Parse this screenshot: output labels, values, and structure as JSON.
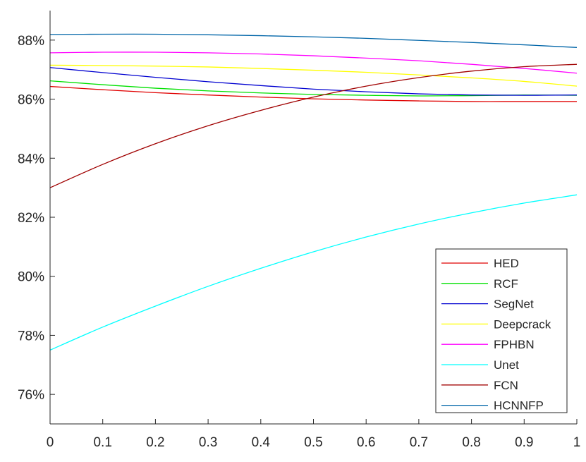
{
  "chart_data": {
    "type": "line",
    "title": "",
    "xlabel": "",
    "ylabel": "",
    "xlim": [
      0,
      1
    ],
    "ylim": [
      75,
      89
    ],
    "grid": false,
    "legend_position": "bottom-right",
    "x_ticks": [
      0,
      0.1,
      0.2,
      0.3,
      0.4,
      0.5,
      0.6,
      0.7,
      0.8,
      0.9,
      1
    ],
    "x_tick_labels": [
      "0",
      "0.1",
      "0.2",
      "0.3",
      "0.4",
      "0.5",
      "0.6",
      "0.7",
      "0.8",
      "0.9",
      "1"
    ],
    "y_ticks": [
      76,
      78,
      80,
      82,
      84,
      86,
      88
    ],
    "y_tick_labels": [
      "76%",
      "78%",
      "80%",
      "82%",
      "84%",
      "86%",
      "88%"
    ],
    "x": [
      0,
      0.1,
      0.2,
      0.3,
      0.4,
      0.5,
      0.6,
      0.7,
      0.8,
      0.9,
      1
    ],
    "series": [
      {
        "name": "HED",
        "color": "#e00000",
        "values": [
          86.43,
          86.32,
          86.22,
          86.14,
          86.07,
          86.01,
          85.97,
          85.94,
          85.92,
          85.92,
          85.92
        ]
      },
      {
        "name": "RCF",
        "color": "#00e000",
        "values": [
          86.62,
          86.49,
          86.37,
          86.28,
          86.21,
          86.16,
          86.13,
          86.11,
          86.12,
          86.14,
          86.13
        ]
      },
      {
        "name": "SegNet",
        "color": "#0000d0",
        "values": [
          87.07,
          86.9,
          86.74,
          86.59,
          86.46,
          86.34,
          86.25,
          86.18,
          86.14,
          86.13,
          86.14
        ]
      },
      {
        "name": "Deepcrack",
        "color": "#ffff00",
        "values": [
          87.15,
          87.14,
          87.12,
          87.09,
          87.04,
          86.98,
          86.91,
          86.82,
          86.72,
          86.6,
          86.44
        ]
      },
      {
        "name": "FPHBN",
        "color": "#ff00ff",
        "values": [
          87.57,
          87.59,
          87.59,
          87.57,
          87.53,
          87.47,
          87.39,
          87.3,
          87.18,
          87.04,
          86.88
        ]
      },
      {
        "name": "Unet",
        "color": "#00ffff",
        "values": [
          77.5,
          78.28,
          78.99,
          79.66,
          80.27,
          80.83,
          81.33,
          81.77,
          82.15,
          82.48,
          82.76
        ]
      },
      {
        "name": "FCN",
        "color": "#a00000",
        "values": [
          83.0,
          83.79,
          84.49,
          85.1,
          85.62,
          86.07,
          86.44,
          86.73,
          86.95,
          87.1,
          87.18
        ]
      },
      {
        "name": "HCNNFP",
        "color": "#0065a8",
        "values": [
          88.19,
          88.2,
          88.2,
          88.18,
          88.15,
          88.11,
          88.06,
          87.99,
          87.92,
          87.84,
          87.75
        ]
      }
    ]
  }
}
